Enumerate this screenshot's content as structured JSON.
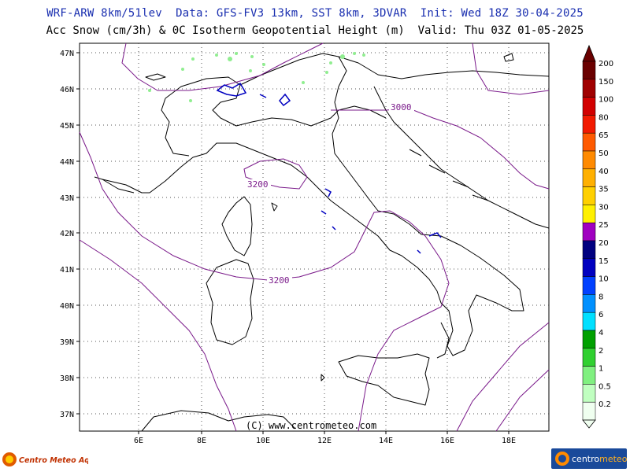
{
  "header": {
    "line1": "WRF-ARW 8km/51lev  Data: GFS-FV3 13km, SST 8km, 3DVAR  Init: Wed 18Z 30-04-2025",
    "line2": "Acc Snow (cm/3h) & 0C Isotherm Geopotential Height (m)  Valid: Thu 03Z 01-05-2025"
  },
  "map": {
    "lat_labels": [
      "47N",
      "46N",
      "45N",
      "44N",
      "43N",
      "42N",
      "41N",
      "40N",
      "39N",
      "38N",
      "37N"
    ],
    "lon_labels": [
      "6E",
      "8E",
      "10E",
      "12E",
      "14E",
      "16E",
      "18E"
    ],
    "contour_labels": [
      "3000",
      "3200",
      "3200"
    ],
    "watermark": "(C) www.centrometeo.com",
    "contour_color": "#7a1a8a",
    "coast_color": "#000000"
  },
  "legend": {
    "levels": [
      "200",
      "150",
      "100",
      "80",
      "65",
      "50",
      "40",
      "35",
      "30",
      "25",
      "20",
      "15",
      "10",
      "8",
      "6",
      "4",
      "2",
      "1",
      "0.5",
      "0.2"
    ],
    "colors": [
      "#6a0000",
      "#a00000",
      "#d20000",
      "#f21a00",
      "#ff5a00",
      "#ff8a00",
      "#ffb000",
      "#ffd000",
      "#fff000",
      "#a000c0",
      "#000080",
      "#0000c0",
      "#0040ff",
      "#0090ff",
      "#00e0ff",
      "#00a000",
      "#30d030",
      "#80f080",
      "#c0ffc0",
      "#f0fff0"
    ],
    "top_color": "#6a0000"
  },
  "logos": {
    "left_text": "Centro Meteo Aquesio",
    "right_text_1": "centro",
    "right_text_2": "meteo"
  }
}
